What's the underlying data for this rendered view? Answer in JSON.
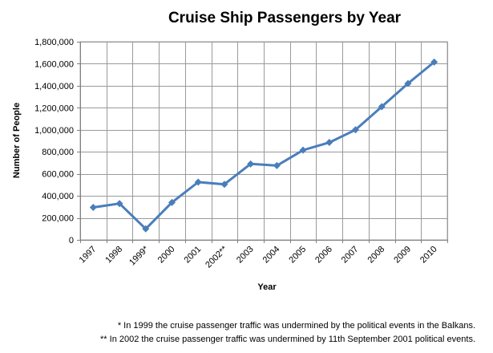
{
  "chart_data": {
    "type": "line",
    "title": "Cruise Ship Passengers by Year",
    "xlabel": "Year",
    "ylabel": "Number of People",
    "categories": [
      "1997",
      "1998",
      "1999*",
      "2000",
      "2001",
      "2002**",
      "2003",
      "2004",
      "2005",
      "2006",
      "2007",
      "2008",
      "2009",
      "2010"
    ],
    "series": [
      {
        "values": [
          295000,
          330000,
          100000,
          340000,
          525000,
          505000,
          690000,
          675000,
          815000,
          885000,
          1000000,
          1210000,
          1420000,
          1615000
        ]
      }
    ],
    "ylim": [
      0,
      1800000
    ],
    "yticks": [
      0,
      200000,
      400000,
      600000,
      800000,
      1000000,
      1200000,
      1400000,
      1600000,
      1800000
    ],
    "ytick_labels": [
      "0",
      "200,000",
      "400,000",
      "600,000",
      "800,000",
      "1,000,000",
      "1,200,000",
      "1,400,000",
      "1,600,000",
      "1,800,000"
    ],
    "grid": true,
    "line_color": "#4a7ebb"
  },
  "footnotes": [
    "* In 1999 the cruise passenger traffic was undermined by the political events in the Balkans.",
    "** In 2002 the cruise passenger traffic was undermined by 11th September 2001 political events."
  ]
}
